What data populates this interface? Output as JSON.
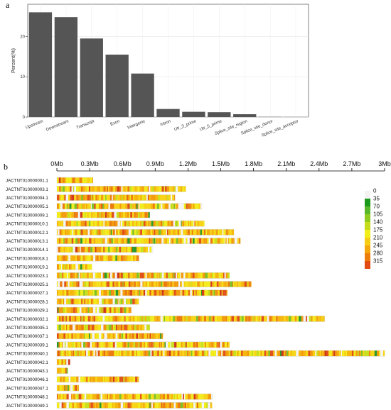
{
  "chart_data": [
    {
      "panel": "a",
      "type": "bar",
      "ylabel": "Percent(%)",
      "categories": [
        "Upstream",
        "Downstream",
        "Transcript",
        "Exon",
        "Intergenic",
        "Intron",
        "Utr_3_prime",
        "Utr_5_prime",
        "Splice_site_region",
        "Splice_site_donor",
        "Splice_site_acceptor"
      ],
      "values": [
        26.0,
        24.8,
        19.5,
        15.5,
        10.8,
        2.0,
        1.3,
        1.2,
        0.7,
        0.05,
        0.03
      ],
      "yticks": [
        0,
        10,
        20
      ],
      "ylim": [
        0,
        28
      ],
      "grid": true,
      "bar_color": "#555555"
    },
    {
      "panel": "b",
      "type": "heatmap",
      "xticks": [
        "0Mb",
        "0.3Mb",
        "0.6Mb",
        "0.9Mb",
        "1.2Mb",
        "1.5Mb",
        "1.8Mb",
        "2.1Mb",
        "2.4Mb",
        "2.7Mb",
        "3Mb"
      ],
      "xlim_mb": [
        0,
        3
      ],
      "chromosomes": [
        {
          "name": "JACTNT010000001.1",
          "length_mb": 0.33
        },
        {
          "name": "JACTNT010000003.1",
          "length_mb": 1.18
        },
        {
          "name": "JACTNT010000004.1",
          "length_mb": 1.08
        },
        {
          "name": "JACTNT010000005.1",
          "length_mb": 1.33
        },
        {
          "name": "JACTNT010000009.1",
          "length_mb": 0.85
        },
        {
          "name": "JACTNT010000010.1",
          "length_mb": 1.35
        },
        {
          "name": "JACTNT010000012.1",
          "length_mb": 1.62
        },
        {
          "name": "JACTNT010000013.1",
          "length_mb": 1.68
        },
        {
          "name": "JACTNT010000014.1",
          "length_mb": 0.88
        },
        {
          "name": "JACTNT010000018.1",
          "length_mb": 0.75
        },
        {
          "name": "JACTNT010000019.1",
          "length_mb": 0.32
        },
        {
          "name": "JACTNT010000023.1",
          "length_mb": 1.58
        },
        {
          "name": "JACTNT010000025.1",
          "length_mb": 1.78
        },
        {
          "name": "JACTNT010000027.1",
          "length_mb": 1.56
        },
        {
          "name": "JACTNT010000028.1",
          "length_mb": 0.75
        },
        {
          "name": "JACTNT010000029.1",
          "length_mb": 0.68
        },
        {
          "name": "JACTNT010000032.1",
          "length_mb": 2.45
        },
        {
          "name": "JACTNT010000035.1",
          "length_mb": 0.85
        },
        {
          "name": "JACTNT010000037.1",
          "length_mb": 0.97
        },
        {
          "name": "JACTNT010000039.1",
          "length_mb": 1.58
        },
        {
          "name": "JACTNT010000040.1",
          "length_mb": 3.0
        },
        {
          "name": "JACTNT010000042.1",
          "length_mb": 0.12
        },
        {
          "name": "JACTNT010000043.1",
          "length_mb": 0.1
        },
        {
          "name": "JACTNT010000046.1",
          "length_mb": 0.75
        },
        {
          "name": "JACTNT010000047.1",
          "length_mb": 0.2
        },
        {
          "name": "JACTNT010000048.1",
          "length_mb": 1.42
        },
        {
          "name": "JACTNT010000049.1",
          "length_mb": 1.42
        }
      ],
      "legend": {
        "values": [
          0,
          35,
          70,
          105,
          140,
          175,
          210,
          245,
          280,
          315
        ],
        "colors": [
          "#f2f2f2",
          "#1a9a1a",
          "#58b82a",
          "#8fcc1e",
          "#c6dc1a",
          "#f2ee1a",
          "#f7cc14",
          "#f4a80e",
          "#ee7e0c",
          "#e24a14"
        ]
      }
    }
  ]
}
